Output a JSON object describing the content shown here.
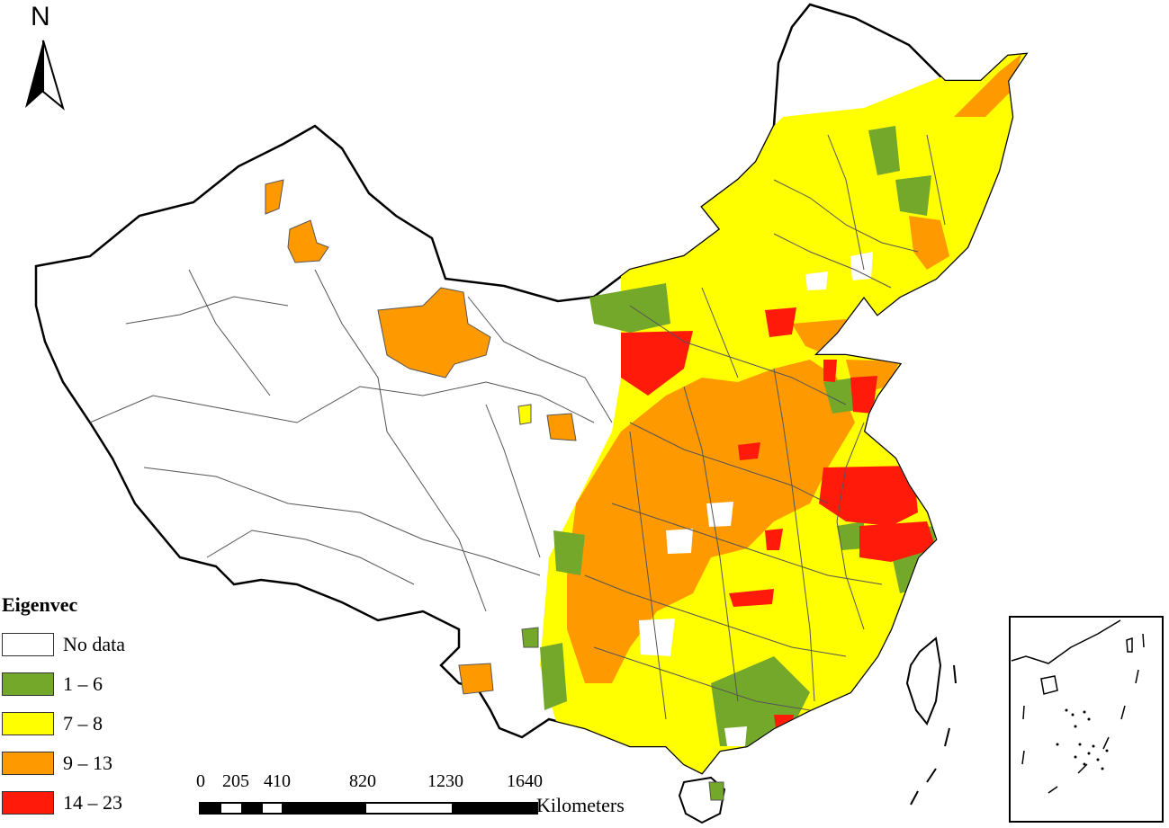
{
  "north_arrow": {
    "letter": "N",
    "icon": "north-arrow-icon"
  },
  "legend": {
    "title": "Eigenvec",
    "items": [
      {
        "label": "No data",
        "color": "#ffffff"
      },
      {
        "label": "1 – 6",
        "color": "#74a82a"
      },
      {
        "label": "7 – 8",
        "color": "#ffff00"
      },
      {
        "label": "9 – 13",
        "color": "#ff9900"
      },
      {
        "label": "14 – 23",
        "color": "#ff1a0a"
      }
    ]
  },
  "scale_bar": {
    "ticks": [
      "0",
      "205",
      "410",
      "820",
      "1230",
      "1640"
    ],
    "unit": "Kilometers"
  },
  "colors": {
    "boundary": "#000000",
    "internal_border": "#555555"
  }
}
